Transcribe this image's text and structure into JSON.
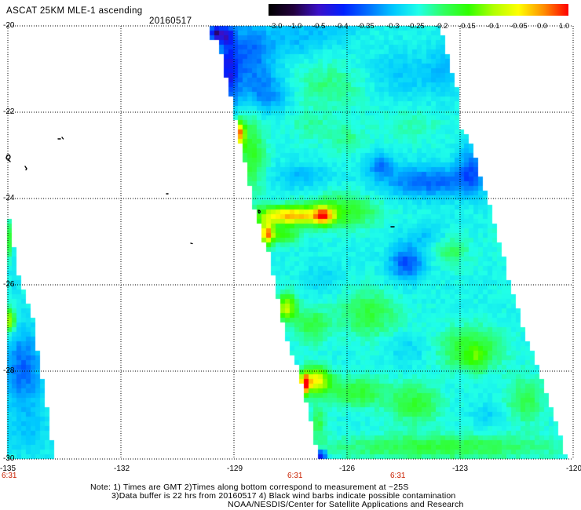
{
  "header": {
    "product": "ASCAT 25KM MLE-1 ascending",
    "date": "20160517"
  },
  "colorbar": {
    "labels": [
      "-3.0",
      "-1.0",
      "-0.5",
      "-0.4",
      "-0.35",
      "-0.3",
      "-0.25",
      "-0.2",
      "-0.15",
      "-0.1",
      "-0.05",
      "0.0",
      "1.0"
    ],
    "colors": [
      "#000000",
      "#22003c",
      "#3a10c8",
      "#0020ff",
      "#0070ff",
      "#00c8ff",
      "#20ffe8",
      "#30ff60",
      "#30ff00",
      "#b0ff00",
      "#ffff00",
      "#ff9000",
      "#ff0000"
    ]
  },
  "axes": {
    "latitude_labels": [
      "-20",
      "-22",
      "-24",
      "-26",
      "-28",
      "-30"
    ],
    "longitude_labels": [
      "-135",
      "-132",
      "-129",
      "-126",
      "-123",
      "-120"
    ]
  },
  "time_labels": [
    "6:31",
    "6:31",
    "6:31"
  ],
  "time_label_color": "#c82000",
  "gridline_color": "#000000",
  "contamination_mark_color": "#000000",
  "notes": [
    "Note: 1) Times are GMT 2)Times along bottom correspond to measurement at ~25S",
    "3)Data buffer is 22 hrs from 20160517 4) Black wind barbs indicate possible contamination",
    "NOAA/NESDIS/Center for Satellite Applications and Research"
  ]
}
